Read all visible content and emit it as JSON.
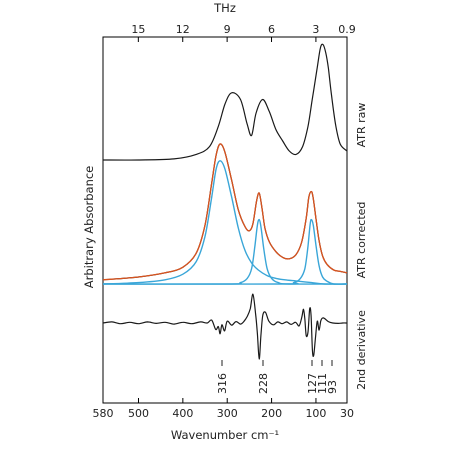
{
  "chart_data": {
    "type": "line",
    "xlabel": "Wavenumber cm⁻¹",
    "x2label": "THz",
    "ylabel": "Arbitrary Absorbance",
    "xlim": [
      580,
      30
    ],
    "xticks": [
      580,
      500,
      400,
      300,
      200,
      100,
      30
    ],
    "x2ticks": [
      15,
      12,
      9,
      6,
      3,
      0.9
    ],
    "panel_labels": {
      "raw": "ATR raw",
      "corrected": "ATR corrected",
      "derivative": "2nd derivative"
    },
    "peak_labels": [
      "316",
      "228",
      "127",
      "111",
      "93"
    ],
    "peak_positions": [
      316,
      228,
      127,
      111,
      93
    ],
    "colors": {
      "raw": "#1a1a1a",
      "fit": "#d9531e",
      "components": "#3aa6d8",
      "frame": "#000000"
    },
    "series": [
      {
        "panel": "raw",
        "color": "#1a1a1a",
        "x": [
          580,
          500,
          420,
          370,
          340,
          320,
          305,
          290,
          270,
          255,
          245,
          235,
          220,
          205,
          190,
          175,
          160,
          145,
          130,
          118,
          108,
          98,
          90,
          84,
          78,
          72,
          65,
          55,
          45,
          30
        ],
        "y": [
          0.0,
          0.0,
          0.01,
          0.05,
          0.12,
          0.3,
          0.5,
          0.6,
          0.54,
          0.32,
          0.22,
          0.42,
          0.54,
          0.43,
          0.27,
          0.17,
          0.08,
          0.05,
          0.12,
          0.3,
          0.55,
          0.8,
          1.0,
          1.03,
          0.96,
          0.82,
          0.58,
          0.3,
          0.14,
          0.08
        ]
      },
      {
        "panel": "corrected",
        "color": "#1a1a1a",
        "x": [
          580,
          500,
          440,
          400,
          370,
          350,
          335,
          325,
          316,
          305,
          290,
          275,
          260,
          250,
          242,
          234,
          228,
          222,
          215,
          205,
          190,
          175,
          160,
          145,
          132,
          122,
          116,
          111,
          107,
          100,
          93,
          85,
          75,
          60,
          45,
          30
        ],
        "y": [
          0.03,
          0.05,
          0.08,
          0.12,
          0.22,
          0.42,
          0.72,
          0.92,
          1.0,
          0.94,
          0.74,
          0.53,
          0.41,
          0.38,
          0.43,
          0.59,
          0.65,
          0.55,
          0.4,
          0.3,
          0.23,
          0.19,
          0.18,
          0.21,
          0.3,
          0.47,
          0.62,
          0.66,
          0.63,
          0.47,
          0.31,
          0.2,
          0.14,
          0.1,
          0.09,
          0.08
        ]
      },
      {
        "panel": "corrected",
        "name": "",
        "color": "#d9531e",
        "x": [
          580,
          500,
          440,
          400,
          370,
          350,
          335,
          325,
          316,
          305,
          290,
          275,
          260,
          250,
          242,
          234,
          228,
          222,
          215,
          205,
          190,
          175,
          160,
          145,
          132,
          122,
          116,
          111,
          107,
          100,
          93,
          85,
          75,
          60,
          45,
          30
        ],
        "y": [
          0.03,
          0.05,
          0.08,
          0.12,
          0.22,
          0.42,
          0.72,
          0.92,
          1.0,
          0.94,
          0.74,
          0.53,
          0.41,
          0.38,
          0.43,
          0.59,
          0.65,
          0.55,
          0.4,
          0.3,
          0.23,
          0.19,
          0.18,
          0.21,
          0.3,
          0.47,
          0.62,
          0.66,
          0.63,
          0.47,
          0.31,
          0.2,
          0.14,
          0.1,
          0.09,
          0.08
        ]
      },
      {
        "panel": "corrected",
        "color": "#3aa6d8",
        "x": [
          580,
          500,
          440,
          400,
          370,
          350,
          335,
          325,
          316,
          305,
          290,
          275,
          260,
          245,
          230,
          210,
          190,
          170,
          140,
          110,
          80,
          30
        ],
        "y": [
          0.0,
          0.01,
          0.03,
          0.07,
          0.16,
          0.34,
          0.62,
          0.82,
          0.88,
          0.82,
          0.62,
          0.4,
          0.24,
          0.15,
          0.1,
          0.06,
          0.04,
          0.03,
          0.02,
          0.01,
          0.0,
          0.0
        ]
      },
      {
        "panel": "corrected",
        "color": "#3aa6d8",
        "x": [
          580,
          300,
          270,
          255,
          245,
          238,
          232,
          228,
          224,
          218,
          210,
          200,
          185,
          160,
          30
        ],
        "y": [
          0.0,
          0.0,
          0.01,
          0.04,
          0.11,
          0.26,
          0.42,
          0.46,
          0.41,
          0.26,
          0.11,
          0.04,
          0.01,
          0.0,
          0.0
        ]
      },
      {
        "panel": "corrected",
        "color": "#3aa6d8",
        "x": [
          580,
          180,
          150,
          135,
          125,
          118,
          113,
          110,
          106,
          100,
          93,
          85,
          75,
          60,
          30
        ],
        "y": [
          0.0,
          0.0,
          0.01,
          0.04,
          0.11,
          0.27,
          0.43,
          0.46,
          0.42,
          0.28,
          0.13,
          0.05,
          0.02,
          0.0,
          0.0
        ]
      },
      {
        "panel": "derivative",
        "color": "#1a1a1a",
        "x": [
          580,
          560,
          540,
          520,
          500,
          480,
          460,
          440,
          420,
          400,
          380,
          360,
          345,
          335,
          326,
          320,
          316,
          312,
          306,
          300,
          290,
          280,
          270,
          262,
          255,
          248,
          242,
          236,
          232,
          228,
          224,
          220,
          214,
          206,
          196,
          186,
          176,
          166,
          156,
          146,
          138,
          132,
          128,
          125,
          122,
          118,
          114,
          111,
          108,
          105,
          101,
          97,
          93,
          89,
          85,
          80,
          72,
          62,
          50,
          40,
          30
        ],
        "y": [
          0.0,
          0.03,
          -0.02,
          0.02,
          -0.02,
          0.03,
          -0.01,
          0.02,
          -0.03,
          0.02,
          -0.02,
          0.03,
          0.0,
          0.08,
          -0.18,
          -0.1,
          -0.3,
          -0.05,
          -0.22,
          0.05,
          -0.06,
          0.04,
          -0.03,
          0.05,
          0.18,
          0.4,
          0.8,
          0.25,
          -0.3,
          -1.0,
          -0.35,
          0.2,
          0.3,
          0.05,
          -0.05,
          0.03,
          -0.02,
          0.03,
          -0.04,
          0.02,
          -0.08,
          0.15,
          0.38,
          0.1,
          -0.35,
          -0.25,
          0.4,
          0.2,
          -0.75,
          -0.9,
          -0.4,
          0.05,
          -0.2,
          0.06,
          0.14,
          0.12,
          0.04,
          0.0,
          -0.01,
          0.0,
          0.0
        ]
      }
    ]
  }
}
